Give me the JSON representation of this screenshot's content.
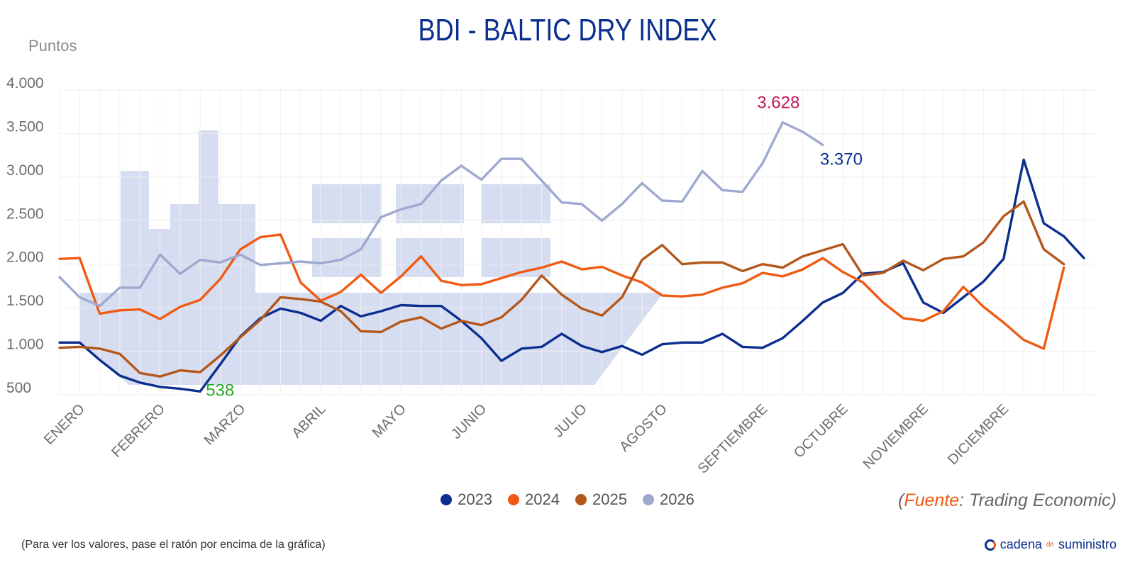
{
  "chart_data": {
    "type": "line",
    "title": "BDI - BALTIC DRY INDEX",
    "ylabel": "Puntos",
    "ylim": [
      500,
      4000
    ],
    "yticks": [
      500,
      1000,
      1500,
      2000,
      2500,
      3000,
      3500,
      4000
    ],
    "ytick_labels": [
      "500",
      "1.000",
      "1.500",
      "2.000",
      "2.500",
      "3.000",
      "3.500",
      "4.000"
    ],
    "month_labels": [
      "ENERO",
      "FEBRERO",
      "MARZO",
      "ABRIL",
      "MAYO",
      "JUNIO",
      "JULIO",
      "AGOSTO",
      "SEPTIEMBRE",
      "OCTUBRE",
      "NOVIEMBRE",
      "DICIEMBRE"
    ],
    "month_positions": [
      1,
      5,
      9,
      13,
      17,
      21,
      26,
      30,
      35,
      39,
      43,
      47
    ],
    "x_count": 52,
    "grid": true,
    "legend_position": "bottom",
    "series": [
      {
        "name": "2023",
        "color": "#0b2f8f",
        "values": [
          1100,
          1100,
          900,
          720,
          640,
          590,
          570,
          538,
          850,
          1170,
          1380,
          1490,
          1440,
          1350,
          1520,
          1400,
          1460,
          1530,
          1520,
          1520,
          1350,
          1150,
          890,
          1030,
          1050,
          1200,
          1060,
          990,
          1060,
          960,
          1080,
          1100,
          1100,
          1200,
          1050,
          1040,
          1150,
          1350,
          1560,
          1670,
          1890,
          1910,
          2010,
          1560,
          1440,
          1620,
          1800,
          2060,
          3200,
          2470,
          2320,
          2070
        ]
      },
      {
        "name": "2024",
        "color": "#f05a12",
        "values": [
          2060,
          2070,
          1430,
          1470,
          1480,
          1370,
          1510,
          1590,
          1830,
          2170,
          2310,
          2340,
          1790,
          1580,
          1680,
          1880,
          1670,
          1860,
          2090,
          1810,
          1760,
          1770,
          1840,
          1910,
          1960,
          2030,
          1940,
          1970,
          1870,
          1790,
          1640,
          1630,
          1650,
          1730,
          1780,
          1900,
          1860,
          1940,
          2070,
          1910,
          1790,
          1560,
          1380,
          1350,
          1460,
          1740,
          1510,
          1330,
          1130,
          1030,
          1960
        ]
      },
      {
        "name": "2025",
        "color": "#b3571b",
        "values": [
          1040,
          1050,
          1030,
          970,
          750,
          710,
          780,
          760,
          950,
          1160,
          1360,
          1620,
          1600,
          1570,
          1460,
          1230,
          1220,
          1340,
          1390,
          1260,
          1350,
          1300,
          1390,
          1590,
          1870,
          1650,
          1490,
          1410,
          1620,
          2050,
          2220,
          2000,
          2020,
          2020,
          1920,
          2000,
          1960,
          2090,
          2160,
          2230,
          1870,
          1900,
          2040,
          1930,
          2060,
          2090,
          2250,
          2550,
          2720,
          2170,
          2000
        ]
      },
      {
        "name": "2026",
        "color": "#9ea9d1",
        "values": [
          1850,
          1620,
          1520,
          1730,
          1730,
          2110,
          1890,
          2050,
          2020,
          2110,
          1990,
          2010,
          2030,
          2010,
          2050,
          2170,
          2540,
          2630,
          2690,
          2960,
          3130,
          2970,
          3210,
          3210,
          2960,
          2710,
          2690,
          2500,
          2690,
          2930,
          2730,
          2720,
          3070,
          2850,
          2830,
          3160,
          3628,
          3520,
          3370
        ]
      }
    ],
    "annotations": [
      {
        "text": "538",
        "x": 7,
        "y": 538,
        "color": "#2aa82a"
      },
      {
        "text": "3.628",
        "x": 36,
        "y": 3628,
        "color": "#c2185b"
      },
      {
        "text": "3.370",
        "x": 38,
        "y": 3370,
        "color": "#0b2f8f"
      }
    ]
  },
  "source": {
    "open": "(",
    "key": "Fuente",
    "rest": ": Trading Economic)"
  },
  "hint": "(Para ver los valores, pase el ratón por encima de la gráfica)",
  "brand": {
    "prefix": "cadena",
    "mid": "de",
    "suffix": "suministro"
  }
}
